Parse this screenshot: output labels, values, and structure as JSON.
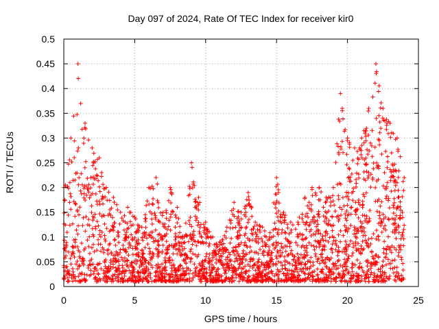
{
  "chart_data": {
    "type": "scatter",
    "title": "Day 097 of 2024, Rate Of TEC Index for receiver kir0",
    "xlabel": "GPS time / hours",
    "ylabel": "ROTI / TECUs",
    "xlim": [
      0,
      25
    ],
    "ylim": [
      0,
      0.5
    ],
    "x_ticks": [
      "0",
      "5",
      "10",
      "15",
      "20",
      "25"
    ],
    "y_ticks": [
      "0",
      "0.05",
      "0.1",
      "0.15",
      "0.2",
      "0.25",
      "0.3",
      "0.35",
      "0.4",
      "0.45",
      "0.5"
    ],
    "grid": true,
    "marker": "plus",
    "color": "#ff0000",
    "envelope": {
      "x": [
        0,
        0.5,
        1,
        1.5,
        2,
        2.5,
        3,
        3.5,
        4,
        4.5,
        5,
        5.5,
        6,
        6.5,
        7,
        7.5,
        8,
        8.5,
        9,
        9.5,
        10,
        10.5,
        11,
        11.5,
        12,
        12.5,
        13,
        13.5,
        14,
        14.5,
        15,
        15.5,
        16,
        16.5,
        17,
        17.5,
        18,
        18.5,
        19,
        19.5,
        20,
        20.5,
        21,
        21.5,
        22,
        22.5,
        23,
        23.5,
        24
      ],
      "y": [
        0.2,
        0.3,
        0.45,
        0.33,
        0.28,
        0.26,
        0.2,
        0.18,
        0.15,
        0.16,
        0.14,
        0.12,
        0.2,
        0.22,
        0.15,
        0.2,
        0.16,
        0.1,
        0.25,
        0.18,
        0.13,
        0.1,
        0.09,
        0.12,
        0.17,
        0.15,
        0.19,
        0.13,
        0.12,
        0.1,
        0.22,
        0.15,
        0.13,
        0.13,
        0.18,
        0.2,
        0.2,
        0.18,
        0.2,
        0.39,
        0.3,
        0.28,
        0.3,
        0.36,
        0.45,
        0.36,
        0.33,
        0.3,
        0.22
      ]
    }
  }
}
